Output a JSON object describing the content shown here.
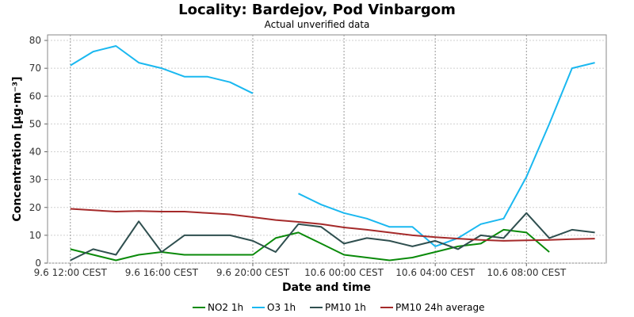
{
  "chart_data": {
    "type": "line",
    "title": "Locality: Bardejov, Pod Vinbargom",
    "subtitle": "Actual unverified data",
    "xlabel": "Date and time",
    "ylabel": "Concentration [µg·m⁻³]",
    "x_ticks": [
      "9.6 12:00 CEST",
      "9.6 16:00 CEST",
      "9.6 20:00 CEST",
      "10.6 00:00 CEST",
      "10.6 04:00 CEST",
      "10.6 08:00 CEST"
    ],
    "x_tick_hours": [
      0,
      4,
      8,
      12,
      16,
      20
    ],
    "x_range_hours": [
      -1,
      23.5
    ],
    "ylim": [
      0,
      82
    ],
    "y_ticks": [
      0,
      10,
      20,
      30,
      40,
      50,
      60,
      70,
      80
    ],
    "grid": true,
    "legend_position": "bottom",
    "series": [
      {
        "name": "NO2 1h",
        "color": "#0a8a0a",
        "points": [
          [
            0,
            5
          ],
          [
            1,
            3
          ],
          [
            2,
            1
          ],
          [
            3,
            3
          ],
          [
            4,
            4
          ],
          [
            5,
            3
          ],
          [
            6,
            3
          ],
          [
            7,
            3
          ],
          [
            8,
            3
          ],
          [
            9,
            9
          ],
          [
            10,
            11
          ],
          [
            11,
            7
          ],
          [
            12,
            3
          ],
          [
            13,
            2
          ],
          [
            14,
            1
          ],
          [
            15,
            2
          ],
          [
            16,
            4
          ],
          [
            17,
            6
          ],
          [
            18,
            7
          ],
          [
            19,
            12
          ],
          [
            20,
            11
          ],
          [
            21,
            4
          ]
        ]
      },
      {
        "name": "O3 1h",
        "color": "#1ab8f0",
        "points": [
          [
            0,
            71
          ],
          [
            1,
            76
          ],
          [
            2,
            78
          ],
          [
            3,
            72
          ],
          [
            4,
            70
          ],
          [
            5,
            67
          ],
          [
            6,
            67
          ],
          [
            7,
            65
          ],
          [
            8,
            61
          ],
          null,
          [
            10,
            25
          ],
          [
            11,
            21
          ],
          [
            12,
            18
          ],
          [
            13,
            16
          ],
          [
            14,
            13
          ],
          [
            15,
            13
          ],
          [
            16,
            6
          ],
          [
            17,
            9
          ],
          [
            18,
            14
          ],
          [
            19,
            16
          ],
          [
            20,
            31
          ],
          [
            21,
            50
          ],
          [
            22,
            70
          ],
          [
            23,
            72
          ]
        ]
      },
      {
        "name": "PM10 1h",
        "color": "#2f4f4f",
        "points": [
          [
            0,
            1
          ],
          [
            1,
            5
          ],
          [
            2,
            3
          ],
          [
            3,
            15
          ],
          [
            4,
            4
          ],
          [
            5,
            10
          ],
          [
            6,
            10
          ],
          [
            7,
            10
          ],
          [
            8,
            8
          ],
          [
            9,
            4
          ],
          [
            10,
            14
          ],
          [
            11,
            13
          ],
          [
            12,
            7
          ],
          [
            13,
            9
          ],
          [
            14,
            8
          ],
          [
            15,
            6
          ],
          [
            16,
            8
          ],
          [
            17,
            5
          ],
          [
            18,
            10
          ],
          [
            19,
            9
          ],
          [
            20,
            18
          ],
          [
            21,
            9
          ],
          [
            22,
            12
          ],
          [
            23,
            11
          ]
        ]
      },
      {
        "name": "PM10 24h average",
        "color": "#a52a2a",
        "points": [
          [
            0,
            19.5
          ],
          [
            1,
            19
          ],
          [
            2,
            18.5
          ],
          [
            3,
            18.7
          ],
          [
            4,
            18.5
          ],
          [
            5,
            18.5
          ],
          [
            6,
            18
          ],
          [
            7,
            17.5
          ],
          [
            8,
            16.5
          ],
          [
            9,
            15.5
          ],
          [
            10,
            14.8
          ],
          [
            11,
            14
          ],
          [
            12,
            12.8
          ],
          [
            13,
            12
          ],
          [
            14,
            11
          ],
          [
            15,
            10
          ],
          [
            16,
            9.3
          ],
          [
            17,
            8.8
          ],
          [
            18,
            8.3
          ],
          [
            19,
            8
          ],
          [
            20,
            8.2
          ],
          [
            21,
            8.3
          ],
          [
            22,
            8.6
          ],
          [
            23,
            8.8
          ]
        ]
      }
    ]
  }
}
